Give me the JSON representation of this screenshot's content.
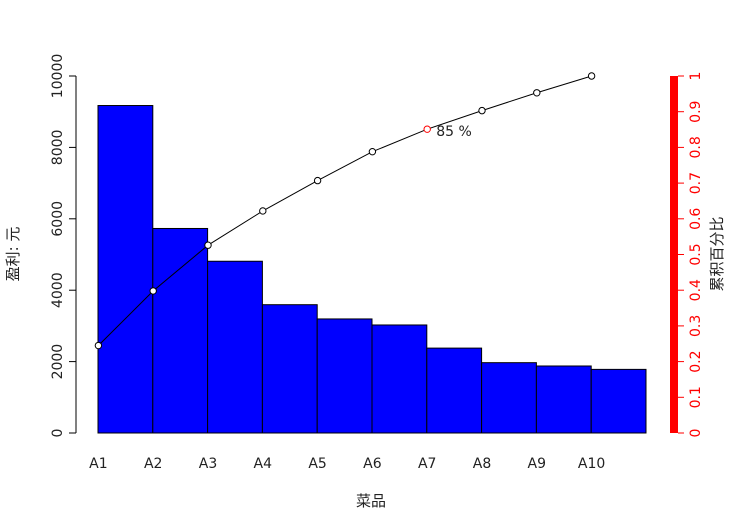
{
  "chart_data": {
    "type": "bar",
    "title": "",
    "xlabel": "菜品",
    "ylabel": "盈利: 元",
    "y2label": "累积百分比",
    "categories": [
      "A1",
      "A2",
      "A3",
      "A4",
      "A5",
      "A6",
      "A7",
      "A8",
      "A9",
      "A10"
    ],
    "series": [
      {
        "type": "bar",
        "values": [
          9173,
          5729,
          4811,
          3594,
          3195,
          3026,
          2378,
          1970,
          1877,
          1782
        ]
      },
      {
        "type": "line",
        "axis": "right",
        "values": [
          0.245,
          0.398,
          0.526,
          0.622,
          0.707,
          0.788,
          0.851,
          0.903,
          0.953,
          1.0
        ]
      }
    ],
    "ylim": [
      0,
      10000
    ],
    "yticks": [
      0,
      2000,
      4000,
      6000,
      8000,
      10000
    ],
    "y2lim": [
      0,
      1
    ],
    "y2ticks": [
      "0",
      "0.1",
      "0.2",
      "0.3",
      "0.4",
      "0.5",
      "0.6",
      "0.7",
      "0.8",
      "0.9",
      "1"
    ],
    "highlight": {
      "category": "A7",
      "label": "85 %"
    },
    "colors": {
      "bars": "#0000ff",
      "line": "#000000",
      "right_axis": "#ff0000",
      "highlight_point": "#ff0000"
    },
    "grid": false,
    "legend": "none"
  }
}
